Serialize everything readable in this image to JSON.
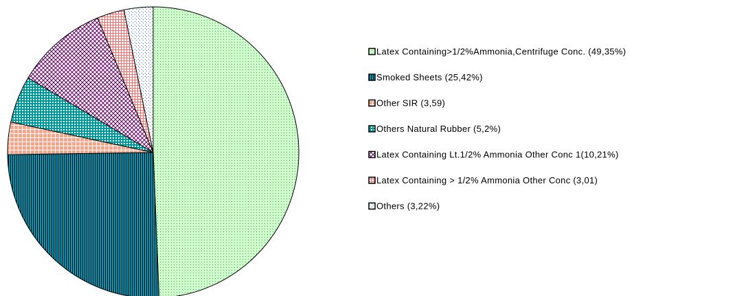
{
  "chart_data": {
    "type": "pie",
    "categories": [
      "Latex Containing>1/2%Ammonia,Centrifuge  Conc. (49,35%)",
      "Smoked Sheets (25,42%)",
      "Other SIR (3,59)",
      "Others Natural Rubber  (5,2%)",
      "Latex Containing Lt.1/2% Ammonia Other Conc 1(10,21%)",
      "Latex Containing > 1/2% Ammonia Other Conc (3,01)",
      "Others (3,22%)"
    ],
    "values": [
      49.35,
      25.42,
      3.59,
      5.2,
      10.21,
      3.01,
      3.22
    ],
    "colors": [
      "#ccffcc",
      "#0099b8",
      "#f4a58a",
      "#009999",
      "#660066",
      "#ff6666",
      "#3366cc"
    ],
    "legend": "right"
  }
}
